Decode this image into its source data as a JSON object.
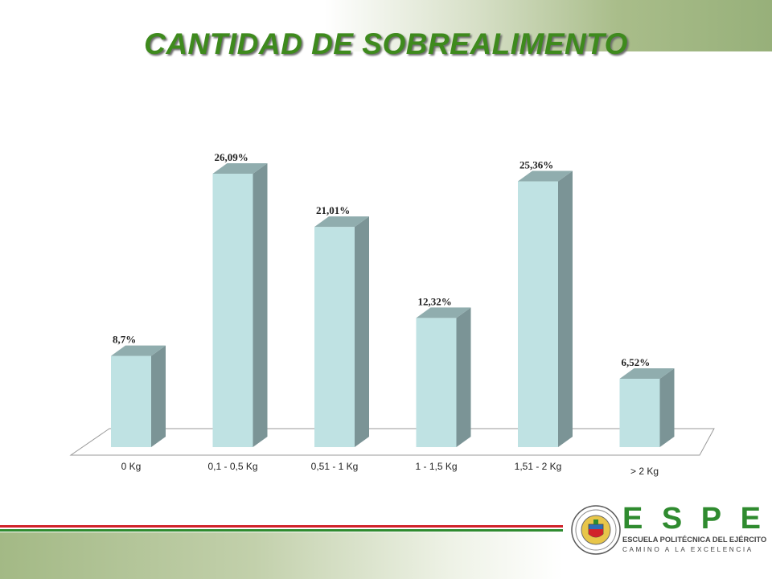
{
  "slide": {
    "title": "CANTIDAD DE SOBREALIMENTO"
  },
  "chart_data": {
    "type": "bar",
    "title": "",
    "xlabel": "",
    "ylabel": "",
    "categories": [
      "0 Kg",
      "0,1 - 0,5 Kg",
      "0,51 - 1 Kg",
      "1 - 1,5 Kg",
      "1,51 - 2 Kg",
      "> 2 Kg"
    ],
    "values": [
      8.7,
      26.09,
      21.01,
      12.32,
      25.36,
      6.52
    ],
    "data_labels": [
      "8,7%",
      "26,09%",
      "21,01%",
      "12,32%",
      "25,36%",
      "6,52%"
    ],
    "ylim": [
      0,
      30
    ],
    "grid": false,
    "legend": "none",
    "style": "3d-column",
    "colors": {
      "bar_front": "#bfe2e3",
      "bar_side": "#7b9496",
      "bar_top": "#90adae",
      "floor_line": "#9a9a9a"
    }
  },
  "logo": {
    "letters": [
      "E",
      "S",
      "P",
      "E"
    ],
    "school": "ESCUELA POLITÉCNICA DEL EJÉRCITO",
    "motto": "CAMINO A LA EXCELENCIA"
  },
  "theme": {
    "title_color": "#3e8a1d",
    "stripe_red": "#d1232a",
    "stripe_green": "#2f8b2f"
  }
}
